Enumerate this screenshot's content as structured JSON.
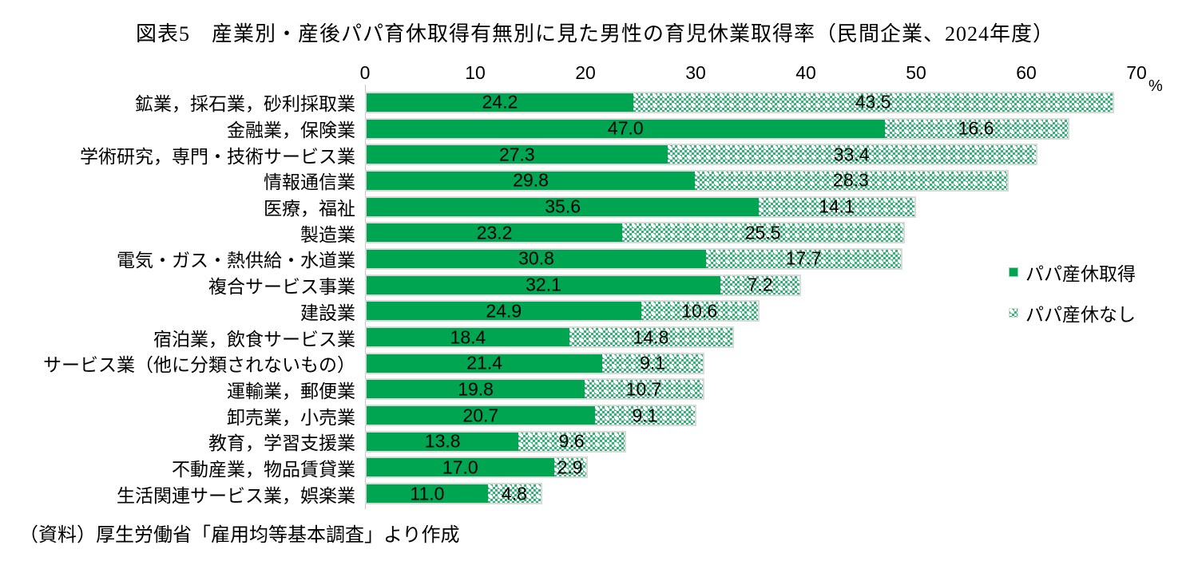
{
  "title": "図表5　産業別・産後パパ育休取得有無別に見た男性の育児休業取得率（民間企業、2024年度）",
  "source": "（資料）厚生労働省「雇用均等基本調査」より作成",
  "axis": {
    "unit": "%",
    "ticks": [
      0,
      10,
      20,
      30,
      40,
      50,
      60,
      70
    ],
    "max": 70
  },
  "legend": [
    {
      "label": "パパ産休取得",
      "style": "solid"
    },
    {
      "label": "パパ産休なし",
      "style": "pattern"
    }
  ],
  "colors": {
    "solid_green": "#00a551",
    "pattern_green": "#2eb573",
    "bar_border": "#d9d9d9",
    "axis_line": "#c6c6c6"
  },
  "chart_data": {
    "type": "bar",
    "orientation": "horizontal",
    "stacked": true,
    "title": "図表5　産業別・産後パパ育休取得有無別に見た男性の育児休業取得率（民間企業、2024年度）",
    "xlabel": "%",
    "xlim": [
      0,
      70
    ],
    "x_ticks": [
      0,
      10,
      20,
      30,
      40,
      50,
      60,
      70
    ],
    "grid": false,
    "legend_position": "right",
    "value_labels": true,
    "categories": [
      "鉱業，採石業，砂利採取業",
      "金融業，保険業",
      "学術研究，専門・技術サービス業",
      "情報通信業",
      "医療，福祉",
      "製造業",
      "電気・ガス・熱供給・水道業",
      "複合サービス事業",
      "建設業",
      "宿泊業，飲食サービス業",
      "サービス業（他に分類されないもの）",
      "運輸業，郵便業",
      "卸売業，小売業",
      "教育，学習支援業",
      "不動産業，物品賃貸業",
      "生活関連サービス業，娯楽業"
    ],
    "series": [
      {
        "name": "パパ産休取得",
        "values": [
          24.2,
          47.0,
          27.3,
          29.8,
          35.6,
          23.2,
          30.8,
          32.1,
          24.9,
          18.4,
          21.4,
          19.8,
          20.7,
          13.8,
          17.0,
          11.0
        ]
      },
      {
        "name": "パパ産休なし",
        "values": [
          43.5,
          16.6,
          33.4,
          28.3,
          14.1,
          25.5,
          17.7,
          7.2,
          10.6,
          14.8,
          9.1,
          10.7,
          9.1,
          9.6,
          2.9,
          4.8
        ]
      }
    ]
  }
}
